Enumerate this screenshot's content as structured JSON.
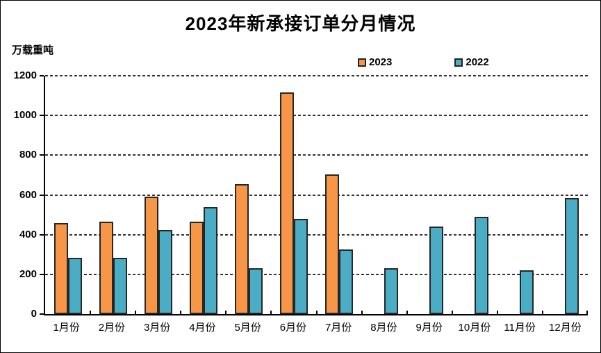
{
  "title": "2023年新承接订单分月情况",
  "y_axis_unit": "万载重吨",
  "legend": [
    {
      "label": "2023",
      "color": "#F79646"
    },
    {
      "label": "2022",
      "color": "#4BACC6"
    }
  ],
  "chart_data": {
    "type": "bar",
    "title": "2023年新承接订单分月情况",
    "ylabel": "万载重吨",
    "xlabel": "",
    "ylim": [
      0,
      1200
    ],
    "ytick_step": 200,
    "grid": "dashed-horizontal",
    "legend_position": "top",
    "categories": [
      "1月份",
      "2月份",
      "3月份",
      "4月份",
      "5月份",
      "6月份",
      "7月份",
      "8月份",
      "9月份",
      "10月份",
      "11月份",
      "12月份"
    ],
    "series": [
      {
        "name": "2023",
        "color": "#F79646",
        "values": [
          460,
          465,
          590,
          465,
          655,
          1115,
          705,
          null,
          null,
          null,
          null,
          null
        ]
      },
      {
        "name": "2022",
        "color": "#4BACC6",
        "values": [
          285,
          285,
          425,
          540,
          230,
          480,
          325,
          230,
          440,
          490,
          220,
          585
        ]
      }
    ]
  }
}
